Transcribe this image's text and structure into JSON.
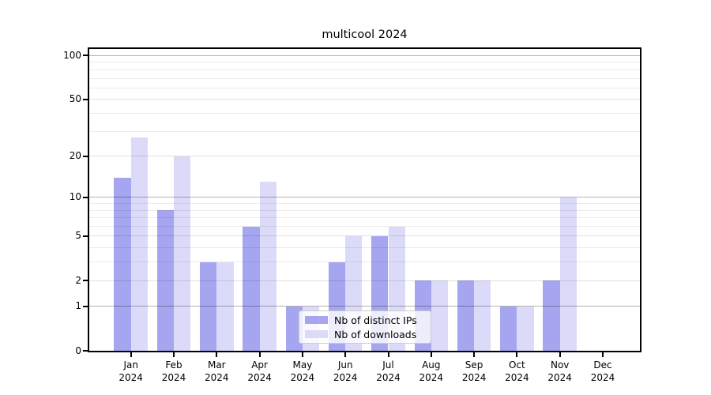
{
  "chart_data": {
    "type": "bar",
    "title": "multicool 2024",
    "categories": [
      "Jan",
      "Feb",
      "Mar",
      "Apr",
      "May",
      "Jun",
      "Jul",
      "Aug",
      "Sep",
      "Oct",
      "Nov",
      "Dec"
    ],
    "year_suffix": "2024",
    "series": [
      {
        "name": "Nb of distinct IPs",
        "color": "#a5a5f0",
        "values": [
          14,
          8,
          3,
          6,
          1,
          3,
          5,
          2,
          2,
          1,
          2,
          0
        ]
      },
      {
        "name": "Nb of downloads",
        "color": "#dbdbf9",
        "values": [
          27,
          20,
          3,
          13,
          1,
          5,
          6,
          2,
          2,
          1,
          10,
          0
        ]
      }
    ],
    "yscale": "log1p",
    "ylim": [
      0,
      112
    ],
    "y_ticks": [
      0,
      1,
      2,
      5,
      10,
      20,
      50,
      100
    ],
    "y_decade_gridlines": [
      1,
      10,
      100
    ],
    "y_labeled_gridlines": [
      2,
      5,
      20,
      50
    ],
    "y_minor_gridlines": [
      3,
      4,
      6,
      7,
      8,
      9,
      30,
      40,
      60,
      70,
      80,
      90
    ],
    "grid": true,
    "legend_position": "lower center"
  },
  "legend": {
    "items": [
      {
        "label": "Nb of distinct IPs",
        "color": "#a5a5f0"
      },
      {
        "label": "Nb of downloads",
        "color": "#dbdbf9"
      }
    ]
  },
  "colors": {
    "grid_decade": "rgba(0,0,0,0.30)",
    "grid_labeled": "rgba(0,0,0,0.12)",
    "grid_minor": "rgba(0,0,0,0.08)",
    "axis": "#000000",
    "background": "#ffffff"
  }
}
